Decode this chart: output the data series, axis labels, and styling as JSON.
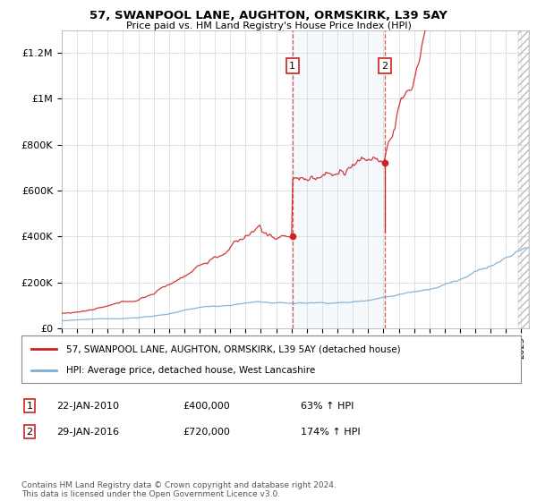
{
  "title1": "57, SWANPOOL LANE, AUGHTON, ORMSKIRK, L39 5AY",
  "title2": "Price paid vs. HM Land Registry's House Price Index (HPI)",
  "xlim_start": 1995.0,
  "xlim_end": 2025.5,
  "ylim": [
    0,
    1300000
  ],
  "yticks": [
    0,
    200000,
    400000,
    600000,
    800000,
    1000000,
    1200000
  ],
  "ytick_labels": [
    "£0",
    "£200K",
    "£400K",
    "£600K",
    "£800K",
    "£1M",
    "£1.2M"
  ],
  "hpi_color": "#7aadd4",
  "price_color": "#cc2222",
  "sale1_x": 2010.06,
  "sale1_y": 400000,
  "sale2_x": 2016.08,
  "sale2_y": 720000,
  "legend_label1": "57, SWANPOOL LANE, AUGHTON, ORMSKIRK, L39 5AY (detached house)",
  "legend_label2": "HPI: Average price, detached house, West Lancashire",
  "note1_date": "22-JAN-2010",
  "note1_price": "£400,000",
  "note1_pct": "63% ↑ HPI",
  "note2_date": "29-JAN-2016",
  "note2_price": "£720,000",
  "note2_pct": "174% ↑ HPI",
  "footer": "Contains HM Land Registry data © Crown copyright and database right 2024.\nThis data is licensed under the Open Government Licence v3.0.",
  "background_color": "#ffffff",
  "grid_color": "#cccccc",
  "shade_color": "#ddeeff"
}
